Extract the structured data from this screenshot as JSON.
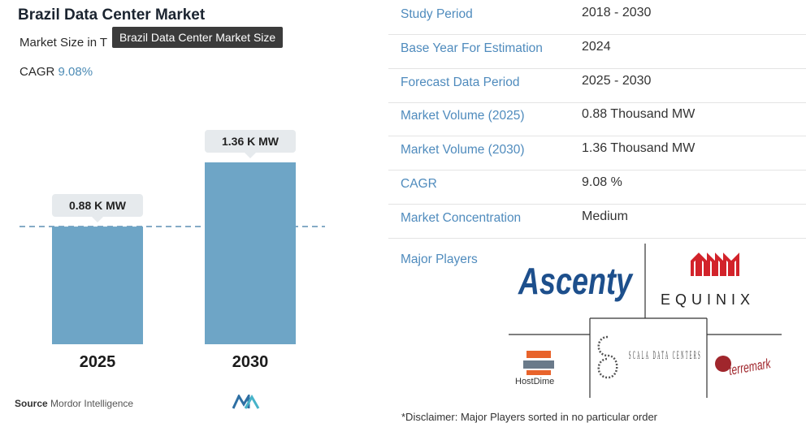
{
  "header": {
    "title": "Brazil Data Center Market",
    "subtitle": "Market Size in T",
    "tooltip": "Brazil Data Center Market Size",
    "cagr_label": "CAGR",
    "cagr_value": "9.08%"
  },
  "chart_data": {
    "type": "bar",
    "categories": [
      "2025",
      "2030"
    ],
    "values": [
      0.88,
      1.36
    ],
    "data_labels": [
      "0.88 K MW",
      "1.36 K MW"
    ],
    "reference_line": 0.88,
    "ylim": [
      0,
      1.6
    ],
    "bar_color": "#6ea5c6",
    "title": "",
    "xlabel": "",
    "ylabel": ""
  },
  "footer": {
    "source_label": "Source",
    "source_value": "Mordor Intelligence",
    "disclaimer": "*Disclaimer: Major Players sorted in no particular order"
  },
  "info_table": [
    {
      "key": "Study Period",
      "value": "2018 - 2030"
    },
    {
      "key": "Base Year For Estimation",
      "value": "2024"
    },
    {
      "key": "Forecast Data Period",
      "value": "2025 - 2030"
    },
    {
      "key": "Market Volume (2025)",
      "value": "0.88 Thousand MW"
    },
    {
      "key": "Market Volume (2030)",
      "value": "1.36 Thousand MW"
    },
    {
      "key": "CAGR",
      "value": "9.08 %"
    },
    {
      "key": "Market Concentration",
      "value": "Medium"
    }
  ],
  "major_players": {
    "label": "Major Players",
    "logos": [
      {
        "name": "Ascenty",
        "icon": "ascenty-logo"
      },
      {
        "name": "EQUINIX",
        "icon": "equinix-logo"
      },
      {
        "name": "HostDime",
        "icon": "hostdime-logo"
      },
      {
        "name": "SCALA DATA CENTERS",
        "icon": "scala-logo"
      },
      {
        "name": "terremark",
        "icon": "terremark-logo"
      }
    ]
  },
  "colors": {
    "accent": "#4f8bbd",
    "bar": "#6ea5c6",
    "ascenty": "#1d4f8c",
    "equinix_red": "#d2232a",
    "hostdime_orange": "#e8632b",
    "terremark_red": "#a0262c"
  }
}
